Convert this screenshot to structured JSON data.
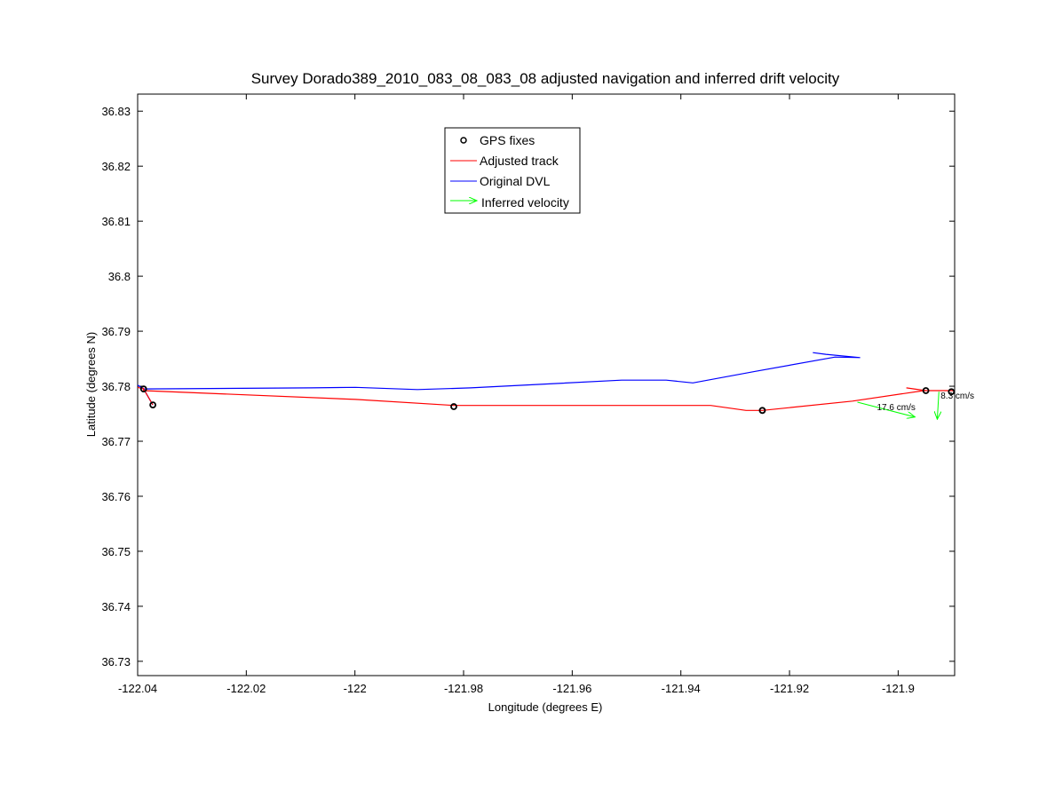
{
  "chart_data": {
    "type": "line",
    "title": "Survey Dorado389_2010_083_08_083_08 adjusted navigation and inferred drift velocity",
    "xlabel": "Longitude (degrees E)",
    "ylabel": "Latitude (degrees N)",
    "xlim": [
      -122.04,
      -121.8896
    ],
    "ylim": [
      36.7274,
      36.8331
    ],
    "xticks": [
      -122.04,
      -122.02,
      -122,
      -121.98,
      -121.96,
      -121.94,
      -121.92,
      -121.9
    ],
    "xtick_labels": [
      "-122.04",
      "-122.02",
      "-122",
      "-121.98",
      "-121.96",
      "-121.94",
      "-121.92",
      "-121.9"
    ],
    "yticks": [
      36.73,
      36.74,
      36.75,
      36.76,
      36.77,
      36.78,
      36.79,
      36.8,
      36.81,
      36.82,
      36.83
    ],
    "ytick_labels": [
      "36.73",
      "36.74",
      "36.75",
      "36.76",
      "36.77",
      "36.78",
      "36.79",
      "36.8",
      "36.81",
      "36.82",
      "36.83"
    ],
    "grid": false,
    "legend_position": "top-center",
    "legend": [
      {
        "label": "GPS fixes",
        "color": "#000000",
        "style": "circle"
      },
      {
        "label": "Adjusted track",
        "color": "#ff0000",
        "style": "line"
      },
      {
        "label": "Original DVL",
        "color": "#0000ff",
        "style": "line"
      },
      {
        "label": "Inferred velocity",
        "color": "#00ff00",
        "style": "arrow"
      }
    ],
    "gps_fixes": [
      [
        -122.0389,
        36.7795
      ],
      [
        -122.0372,
        36.7766
      ],
      [
        -121.9818,
        36.7763
      ],
      [
        -121.925,
        36.7756
      ],
      [
        -121.8949,
        36.7792
      ],
      [
        -121.8902,
        36.779
      ]
    ],
    "adjusted_track": [
      [
        -122.04,
        36.7798
      ],
      [
        -122.0389,
        36.7795
      ],
      [
        -122.0372,
        36.7766
      ],
      [
        -122.0389,
        36.7795
      ],
      [
        -122.0389,
        36.7792
      ],
      [
        -121.9999,
        36.7776
      ],
      [
        -121.9818,
        36.7765
      ],
      [
        -121.9345,
        36.7765
      ],
      [
        -121.928,
        36.7756
      ],
      [
        -121.925,
        36.7756
      ],
      [
        -121.9084,
        36.7773
      ],
      [
        -121.8953,
        36.7792
      ],
      [
        -121.8896,
        36.7792
      ]
    ],
    "adjusted_track_extra": [
      [
        -121.8985,
        36.7797
      ],
      [
        -121.8949,
        36.7792
      ]
    ],
    "original_dvl": [
      [
        -122.04,
        36.7802
      ],
      [
        -122.0389,
        36.7795
      ],
      [
        -122.0372,
        36.7766
      ],
      [
        -122.0389,
        36.7795
      ],
      [
        -122.0081,
        36.7797
      ],
      [
        -121.9999,
        36.7798
      ],
      [
        -121.9885,
        36.7794
      ],
      [
        -121.9787,
        36.7797
      ],
      [
        -121.9509,
        36.7811
      ],
      [
        -121.9427,
        36.7811
      ],
      [
        -121.9378,
        36.7806
      ],
      [
        -121.9263,
        36.7827
      ],
      [
        -121.9116,
        36.7853
      ],
      [
        -121.907,
        36.7852
      ],
      [
        -121.9133,
        36.7858
      ],
      [
        -121.9157,
        36.7861
      ]
    ],
    "velocity_arrows": [
      {
        "from": [
          -121.9075,
          36.7771
        ],
        "to": [
          -121.8969,
          36.7744
        ],
        "label": "17.6 cm/s"
      },
      {
        "from": [
          -121.8925,
          36.779
        ],
        "to": [
          -121.8928,
          36.774
        ],
        "label": "8.3 cm/s"
      }
    ]
  }
}
